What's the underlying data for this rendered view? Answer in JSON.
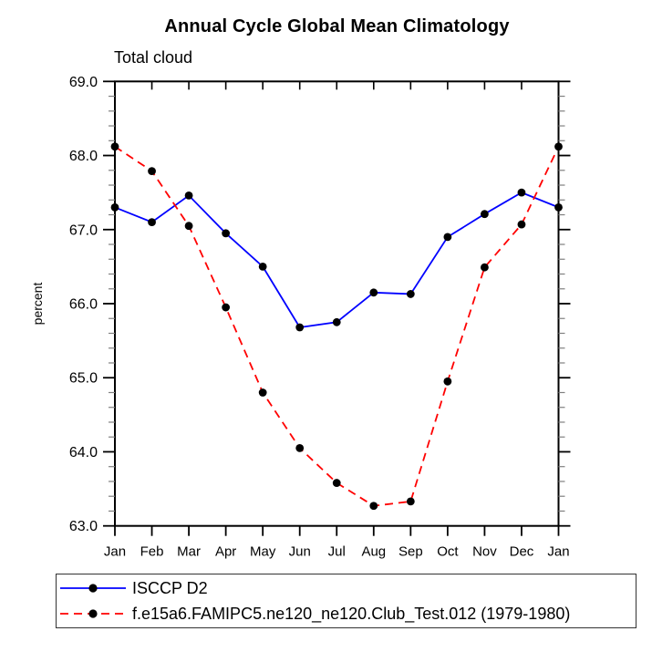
{
  "figure": {
    "title": "Annual Cycle Global Mean Climatology",
    "subtitle": "Total cloud"
  },
  "chart_data": {
    "type": "line",
    "x_categories": [
      "Jan",
      "Feb",
      "Mar",
      "Apr",
      "May",
      "Jun",
      "Jul",
      "Aug",
      "Sep",
      "Oct",
      "Nov",
      "Dec",
      "Jan"
    ],
    "ylabel": "percent",
    "ylim": [
      63.0,
      69.0
    ],
    "ytick_major_step": 1.0,
    "ytick_minor_step": 0.2,
    "ytick_labels": [
      "69.0",
      "68.0",
      "67.0",
      "66.0",
      "65.0",
      "64.0",
      "63.0"
    ],
    "grid": false,
    "legend_position": "below-bottom-left",
    "series": [
      {
        "name": "ISCCP D2",
        "line_color": "#0000ff",
        "line_style": "solid",
        "marker": "filled-circle",
        "marker_color": "#000000",
        "values": [
          67.3,
          67.1,
          67.46,
          66.95,
          66.5,
          65.68,
          65.75,
          66.15,
          66.13,
          66.9,
          67.21,
          67.5,
          67.3
        ]
      },
      {
        "name": "f.e15a6.FAMIPC5.ne120_ne120.Club_Test.012 (1979-1980)",
        "line_color": "#ff0000",
        "line_style": "dashed",
        "marker": "filled-circle",
        "marker_color": "#000000",
        "values": [
          68.12,
          67.79,
          67.05,
          65.95,
          64.8,
          64.05,
          63.58,
          63.27,
          63.33,
          64.95,
          66.49,
          67.07,
          68.12
        ]
      }
    ]
  }
}
